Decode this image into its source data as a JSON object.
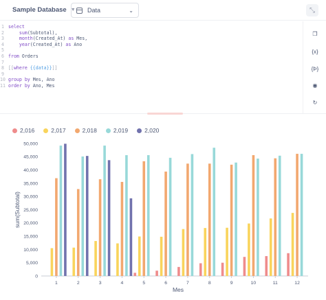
{
  "toolbar": {
    "database_label": "Sample Database",
    "table_label": "Data",
    "db_chevron_icon": "chevron-down-icon",
    "table_chevron_icon": "chevron-down-icon",
    "collapse_icon": "contract-icon"
  },
  "editor": {
    "lines": [
      {
        "num": "1",
        "tokens": [
          {
            "t": "select",
            "c": "kw"
          }
        ]
      },
      {
        "num": "2",
        "tokens": [
          {
            "t": "    "
          },
          {
            "t": "sum",
            "c": "fn"
          },
          {
            "t": "(Subtotal),"
          }
        ]
      },
      {
        "num": "3",
        "tokens": [
          {
            "t": "    "
          },
          {
            "t": "month",
            "c": "fn"
          },
          {
            "t": "(Created_At) "
          },
          {
            "t": "as",
            "c": "kw"
          },
          {
            "t": " Mes,"
          }
        ]
      },
      {
        "num": "4",
        "tokens": [
          {
            "t": "    "
          },
          {
            "t": "year",
            "c": "fn"
          },
          {
            "t": "(Created_At) "
          },
          {
            "t": "as",
            "c": "kw"
          },
          {
            "t": " Ano"
          }
        ]
      },
      {
        "num": "5",
        "tokens": []
      },
      {
        "num": "6",
        "tokens": [
          {
            "t": "from",
            "c": "kw"
          },
          {
            "t": " Orders"
          }
        ]
      },
      {
        "num": "7",
        "tokens": []
      },
      {
        "num": "8",
        "tokens": [
          {
            "t": "[[",
            "c": "bracket"
          },
          {
            "t": "where",
            "c": "kw"
          },
          {
            "t": " "
          },
          {
            "t": "{{data}}",
            "c": "var"
          },
          {
            "t": "]]",
            "c": "bracket"
          }
        ]
      },
      {
        "num": "9",
        "tokens": []
      },
      {
        "num": "10",
        "tokens": [
          {
            "t": "group by",
            "c": "kw"
          },
          {
            "t": " Mes, Ano"
          }
        ]
      },
      {
        "num": "11",
        "tokens": [
          {
            "t": "order by",
            "c": "kw"
          },
          {
            "t": " Ano, Mes"
          }
        ]
      }
    ]
  },
  "sidebar": {
    "buttons": [
      {
        "name": "data-reference-button",
        "glyph": "📖"
      },
      {
        "name": "variables-button",
        "glyph": "{x}"
      },
      {
        "name": "snippets-button",
        "glyph": "{Þ}"
      },
      {
        "name": "preview-button",
        "glyph": "👁"
      },
      {
        "name": "refresh-button",
        "glyph": "↻"
      }
    ]
  },
  "chart_data": {
    "type": "bar",
    "xlabel": "Mes",
    "ylabel": "sum(Subtotal)",
    "ylim": [
      0,
      50000
    ],
    "yticks": [
      0,
      5000,
      10000,
      15000,
      20000,
      25000,
      30000,
      35000,
      40000,
      45000,
      50000
    ],
    "ytick_labels": [
      "0",
      "5,000",
      "10,000",
      "15,000",
      "20,000",
      "25,000",
      "30,000",
      "35,000",
      "40,000",
      "45,000",
      "50,000"
    ],
    "categories": [
      "1",
      "2",
      "3",
      "4",
      "5",
      "6",
      "7",
      "8",
      "9",
      "10",
      "11",
      "12"
    ],
    "legend_position": "top-left",
    "series": [
      {
        "name": "2,016",
        "color": "#ef8c8c",
        "values": [
          null,
          null,
          null,
          null,
          1200,
          2000,
          3400,
          4800,
          5000,
          7200,
          7500,
          8600
        ]
      },
      {
        "name": "2,017",
        "color": "#f9d45c",
        "values": [
          10500,
          10700,
          13200,
          12300,
          14900,
          14800,
          17700,
          18100,
          18200,
          19800,
          21700,
          23800
        ]
      },
      {
        "name": "2,018",
        "color": "#f2a86f",
        "values": [
          36900,
          32800,
          36500,
          35500,
          43300,
          39400,
          42400,
          42400,
          42000,
          45600,
          44400,
          46100
        ]
      },
      {
        "name": "2,019",
        "color": "#98d9d9",
        "values": [
          49200,
          45100,
          49200,
          45600,
          45600,
          44600,
          46000,
          48400,
          42800,
          44300,
          45400,
          46100
        ]
      },
      {
        "name": "2,020",
        "color": "#7172ad",
        "values": [
          49900,
          45300,
          43700,
          29300,
          null,
          null,
          null,
          null,
          null,
          null,
          null,
          null
        ]
      }
    ]
  }
}
